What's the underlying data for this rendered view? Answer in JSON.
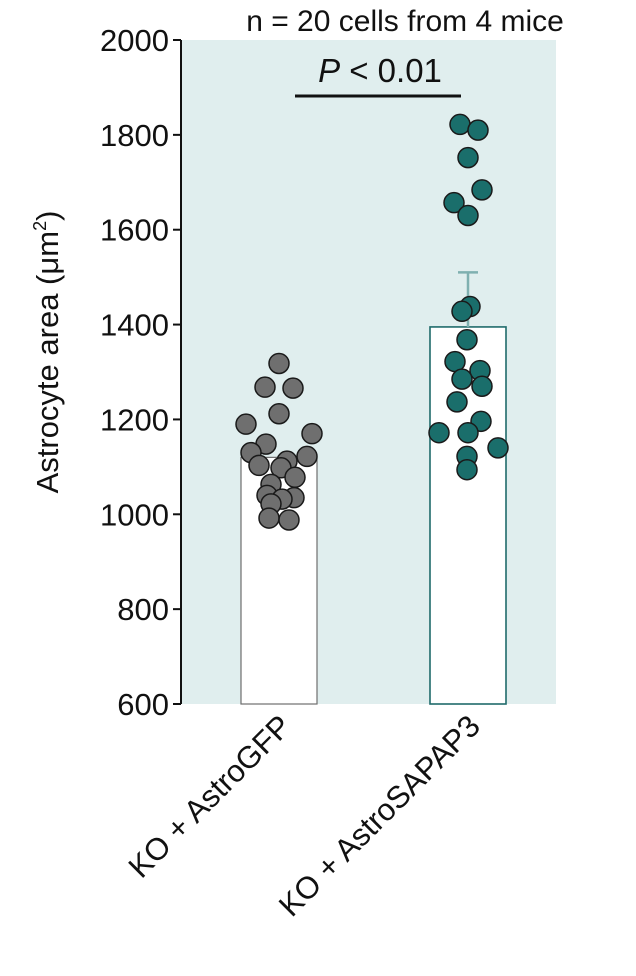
{
  "chart_data": {
    "type": "bar",
    "title": "n = 20 cells from 4 mice",
    "ylabel": "Astrocyte area",
    "ylabel_unit": "μm",
    "ylabel_unit_sup": "2",
    "ylim": [
      600,
      2000
    ],
    "yticks": [
      600,
      800,
      1000,
      1200,
      1400,
      1600,
      1800,
      2000
    ],
    "categories": [
      "KO + AstroGFP",
      "KO + AstroSAPAP3"
    ],
    "series": [
      {
        "values": [
          1120,
          1395
        ],
        "error": [
          null,
          115
        ],
        "colors": {
          "bar_edge": "#6e6e6e",
          "point_fill": "#6f6f6f"
        },
        "points": [
          1318,
          1268,
          1266,
          1212,
          1190,
          1170,
          1148,
          1130,
          1122,
          1112,
          1103,
          1098,
          1078,
          1063,
          1040,
          1035,
          1032,
          1022,
          992,
          988
        ]
      },
      {
        "colors": {
          "bar_edge": "#1f6b6b",
          "point_fill": "#1a6e6b"
        },
        "points": [
          1822,
          1810,
          1752,
          1684,
          1657,
          1630,
          1438,
          1428,
          1368,
          1322,
          1303,
          1285,
          1270,
          1237,
          1196,
          1172,
          1172,
          1140,
          1122,
          1094
        ]
      }
    ],
    "annotation": {
      "p_italic": "P",
      "p_text": " < 0.01"
    },
    "colors": {
      "plot_background": "#e0eeee",
      "axis": "#111111",
      "errorbar": "#7fb0b0"
    }
  }
}
